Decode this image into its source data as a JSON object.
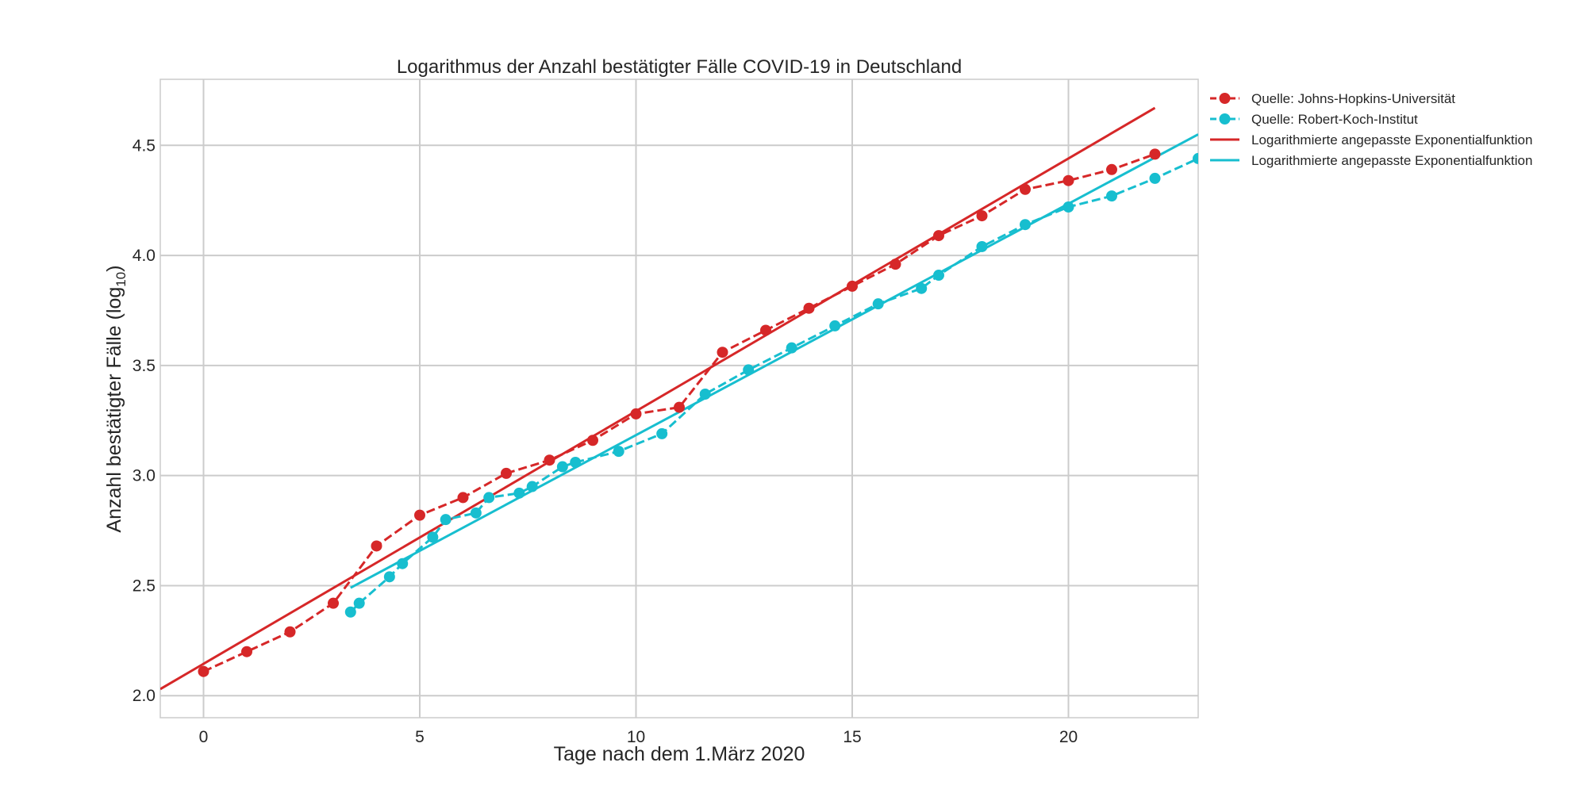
{
  "chart_data": {
    "type": "line",
    "title": "Logarithmus der Anzahl bestätigter Fälle  COVID-19 in Deutschland",
    "xlabel": "Tage nach dem 1.März 2020",
    "ylabel_main": "Anzahl bestätigter Fälle (log",
    "ylabel_sub": "10",
    "ylabel_tail": ")",
    "xlim": [
      -1,
      23
    ],
    "ylim": [
      1.9,
      4.8
    ],
    "xticks": [
      0,
      5,
      10,
      15,
      20
    ],
    "xtick_labels": [
      "0",
      "5",
      "10",
      "15",
      "20"
    ],
    "yticks": [
      2.0,
      2.5,
      3.0,
      3.5,
      4.0,
      4.5
    ],
    "ytick_labels": [
      "2.0",
      "2.5",
      "3.0",
      "3.5",
      "4.0",
      "4.5"
    ],
    "grid": true,
    "legend_position": "outside-top-right",
    "series": [
      {
        "name": "Quelle: Johns-Hopkins-Universität",
        "style": "dashed-markers",
        "color": "#d62728",
        "x": [
          0,
          1,
          2,
          3,
          4,
          5,
          6,
          7,
          8,
          9,
          10,
          11,
          12,
          13,
          14,
          15,
          16,
          17,
          18,
          19,
          20,
          21,
          22
        ],
        "y": [
          2.11,
          2.2,
          2.29,
          2.42,
          2.68,
          2.82,
          2.9,
          3.01,
          3.07,
          3.16,
          3.28,
          3.31,
          3.56,
          3.66,
          3.76,
          3.86,
          3.96,
          4.09,
          4.18,
          4.3,
          4.34,
          4.39,
          4.46
        ]
      },
      {
        "name": "Quelle: Robert-Koch-Institut",
        "style": "dashed-markers",
        "color": "#17becf",
        "x": [
          3.4,
          3.6,
          4.3,
          4.6,
          5.3,
          5.6,
          6.3,
          6.6,
          7.3,
          7.6,
          8.3,
          8.6,
          9.6,
          10.6,
          11.6,
          12.6,
          13.6,
          14.6,
          15.6,
          16.6,
          17,
          18,
          19,
          20,
          21,
          22,
          23
        ],
        "y": [
          2.38,
          2.42,
          2.54,
          2.6,
          2.72,
          2.8,
          2.83,
          2.9,
          2.92,
          2.95,
          3.04,
          3.06,
          3.11,
          3.19,
          3.37,
          3.48,
          3.58,
          3.68,
          3.78,
          3.85,
          3.91,
          4.04,
          4.14,
          4.22,
          4.27,
          4.35,
          4.44
        ]
      },
      {
        "name": "Logarithmierte angepasste Exponentialfunktion",
        "style": "solid",
        "color": "#d62728",
        "x": [
          -1,
          22
        ],
        "y": [
          2.03,
          4.67
        ]
      },
      {
        "name": "Logarithmierte angepasste Exponentialfunktion",
        "style": "solid",
        "color": "#17becf",
        "x": [
          3.4,
          23
        ],
        "y": [
          2.49,
          4.55
        ]
      }
    ]
  }
}
